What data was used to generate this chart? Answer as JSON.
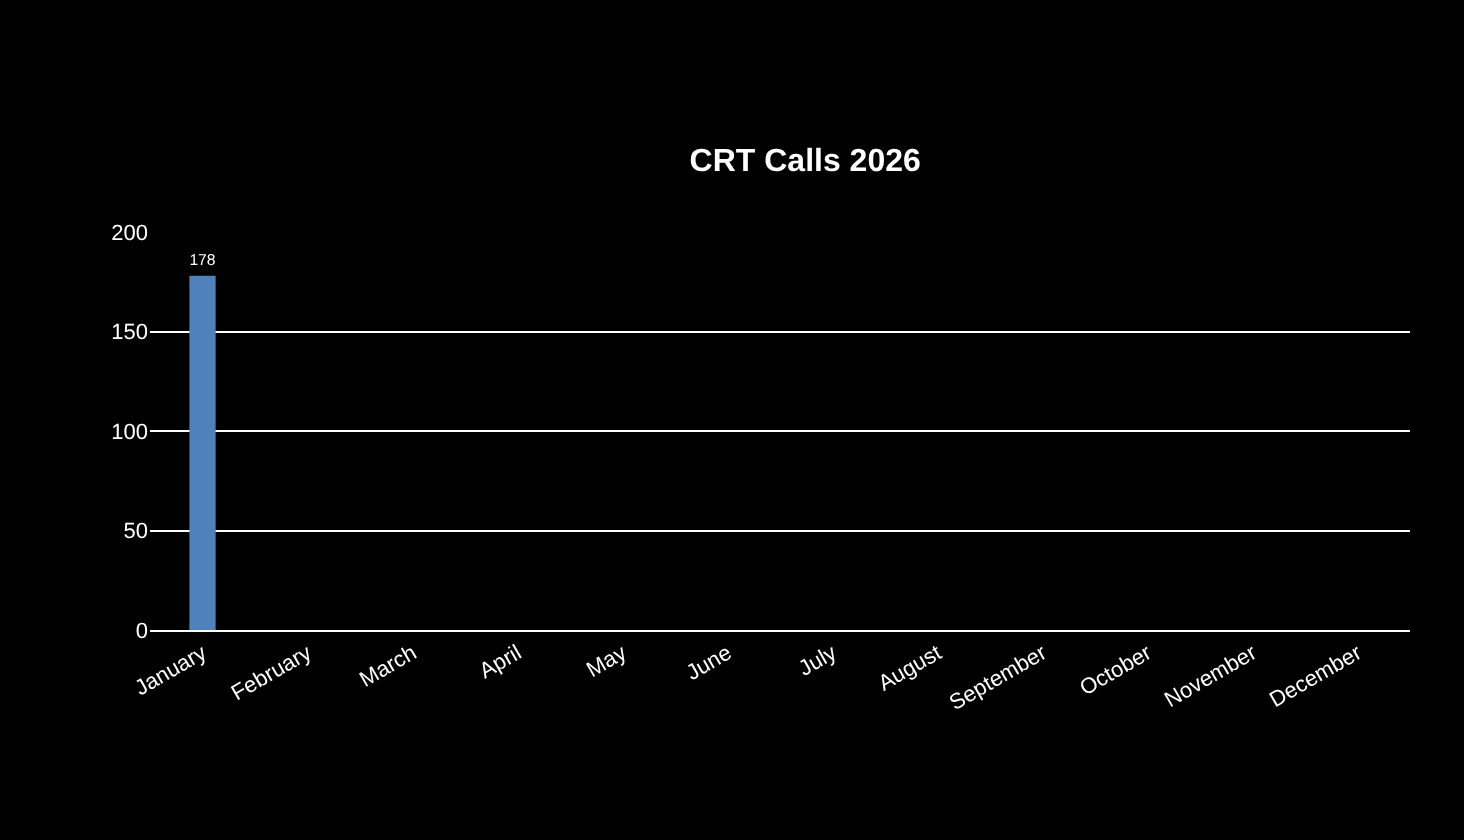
{
  "chart_data": {
    "type": "bar",
    "title": "CRT Calls 2026",
    "categories": [
      "January",
      "February",
      "March",
      "April",
      "May",
      "June",
      "July",
      "August",
      "September",
      "October",
      "November",
      "December"
    ],
    "values": [
      178,
      null,
      null,
      null,
      null,
      null,
      null,
      null,
      null,
      null,
      null,
      null
    ],
    "color": "#4f81bd",
    "ylim": [
      0,
      200
    ],
    "yticks": [
      0,
      50,
      100,
      150,
      200
    ],
    "grid": "y",
    "data_labels": true
  }
}
